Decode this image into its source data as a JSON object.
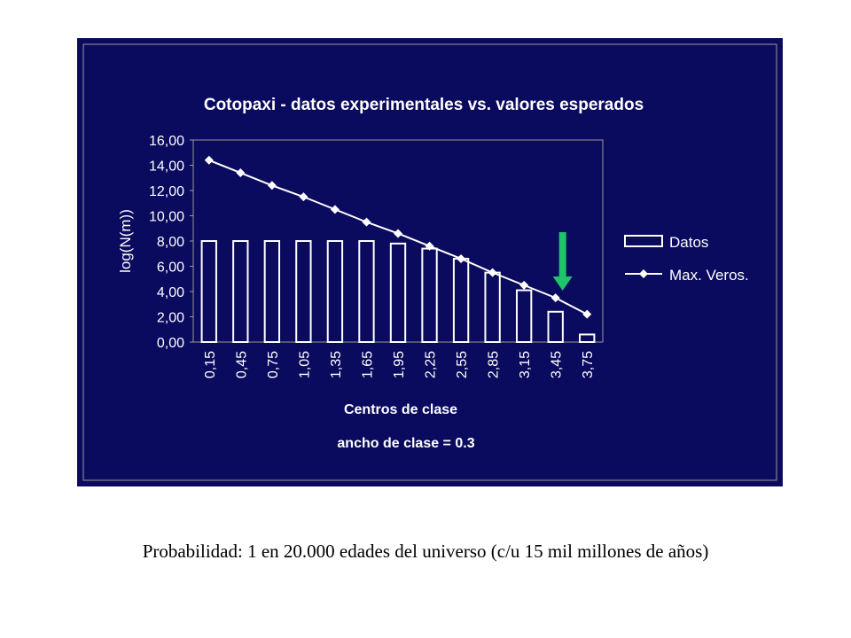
{
  "colors": {
    "panel_background": "#0a0a5e",
    "plot_border": "#9a9a9a",
    "text": "#ffffff",
    "bar_fill": "#0a0a5e",
    "bar_stroke": "#ffffff",
    "line_color": "#ffffff",
    "arrow_color": "#1fc46a",
    "caption_text": "#000000"
  },
  "icons": {
    "marker": "diamond",
    "annotation": "down-arrow"
  },
  "chart_data": {
    "type": "bar",
    "title": "Cotopaxi - datos experimentales vs. valores esperados",
    "xlabel": "Centros de clase",
    "ylabel": "log(N(m))",
    "note": "ancho de clase = 0.3",
    "ylim": [
      0,
      16
    ],
    "yticks": [
      "0,00",
      "2,00",
      "4,00",
      "6,00",
      "8,00",
      "10,00",
      "12,00",
      "14,00",
      "16,00"
    ],
    "categories": [
      "0,15",
      "0,45",
      "0,75",
      "1,05",
      "1,35",
      "1,65",
      "1,95",
      "2,25",
      "2,55",
      "2,85",
      "3,15",
      "3,45",
      "3,75"
    ],
    "grid": false,
    "legend_position": "right",
    "series": [
      {
        "name": "Datos",
        "kind": "bar",
        "values": [
          8.0,
          8.0,
          8.0,
          8.0,
          8.0,
          8.0,
          7.8,
          7.4,
          6.6,
          5.5,
          4.1,
          2.4,
          0.6
        ]
      },
      {
        "name": "Max. Veros.",
        "kind": "line",
        "values": [
          14.4,
          13.4,
          12.4,
          11.5,
          10.5,
          9.5,
          8.6,
          7.6,
          6.6,
          5.5,
          4.5,
          3.5,
          2.2
        ]
      }
    ],
    "annotation": {
      "type": "arrow",
      "direction": "down",
      "category": "3,45"
    }
  },
  "caption": "Probabilidad: 1 en 20.000 edades del universo (c/u 15 mil millones de años)"
}
